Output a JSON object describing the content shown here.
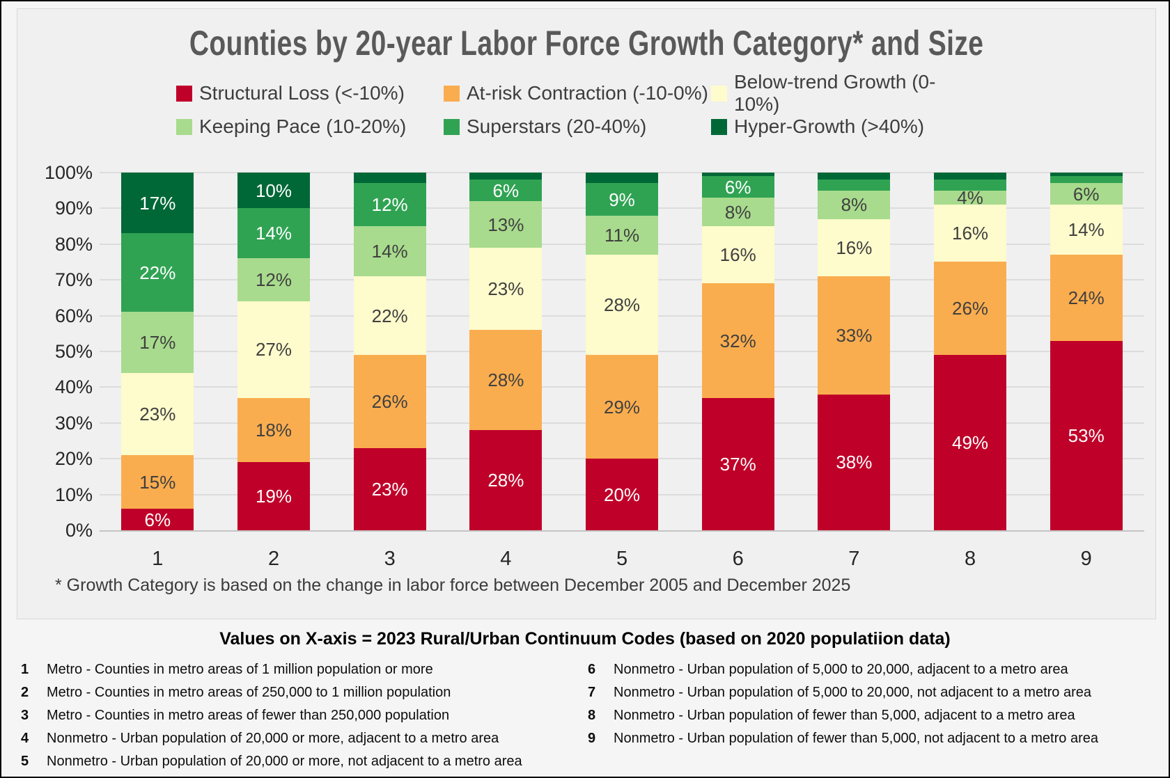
{
  "title": "Counties by 20-year Labor Force Growth Category* and Size",
  "footnote": "* Growth Category is based on the change in labor force between December 2005 and December 2025",
  "x_axis_note": {
    "heading": "Values on X-axis = 2023 Rural/Urban Continuum Codes  (based on 2020 populatiion data)",
    "codes_left": [
      {
        "code": "1",
        "desc": "Metro - Counties in metro areas of 1 million population or more"
      },
      {
        "code": "2",
        "desc": "Metro - Counties in metro areas of 250,000 to 1 million population"
      },
      {
        "code": "3",
        "desc": "Metro - Counties in metro areas of fewer than 250,000 population"
      },
      {
        "code": "4",
        "desc": "Nonmetro - Urban population of 20,000 or more, adjacent to a metro area"
      },
      {
        "code": "5",
        "desc": "Nonmetro - Urban population of 20,000 or more, not adjacent to a metro area"
      }
    ],
    "codes_right": [
      {
        "code": "6",
        "desc": "Nonmetro - Urban population of 5,000 to 20,000, adjacent to a metro area"
      },
      {
        "code": "7",
        "desc": "Nonmetro - Urban population of 5,000 to 20,000, not adjacent to a metro area"
      },
      {
        "code": "8",
        "desc": "Nonmetro - Urban population of fewer than 5,000, adjacent to a metro area"
      },
      {
        "code": "9",
        "desc": "Nonmetro - Urban population of fewer than 5,000, not adjacent to a metro area"
      }
    ]
  },
  "chart_data": {
    "type": "bar",
    "stacked": true,
    "orientation": "vertical",
    "title": "Counties by 20-year Labor Force Growth Category* and Size",
    "categories": [
      "1",
      "2",
      "3",
      "4",
      "5",
      "6",
      "7",
      "8",
      "9"
    ],
    "series": [
      {
        "name": "Structural Loss (<-10%)",
        "color": "#BF0029",
        "label_color": "#FFFFFF",
        "values": [
          6,
          19,
          23,
          28,
          20,
          37,
          38,
          49,
          53
        ]
      },
      {
        "name": "At-risk Contraction (-10-0%)",
        "color": "#FAAD4F",
        "label_color": "#404040",
        "values": [
          15,
          18,
          26,
          28,
          29,
          32,
          33,
          26,
          24
        ]
      },
      {
        "name": "Below-trend Growth (0-10%)",
        "color": "#FEFBCC",
        "label_color": "#404040",
        "values": [
          23,
          27,
          22,
          23,
          28,
          16,
          16,
          16,
          14
        ]
      },
      {
        "name": "Keeping Pace (10-20%)",
        "color": "#A8DB8D",
        "label_color": "#404040",
        "values": [
          17,
          12,
          14,
          13,
          11,
          8,
          8,
          4,
          6
        ]
      },
      {
        "name": "Superstars (20-40%)",
        "color": "#30A353",
        "label_color": "#FFFFFF",
        "values": [
          22,
          14,
          12,
          6,
          9,
          6,
          3,
          3,
          2
        ]
      },
      {
        "name": "Hyper-Growth (>40%)",
        "color": "#006837",
        "label_color": "#FFFFFF",
        "values": [
          17,
          10,
          3,
          2,
          3,
          1,
          2,
          2,
          1
        ]
      }
    ],
    "y_ticks": [
      "0%",
      "10%",
      "20%",
      "30%",
      "40%",
      "50%",
      "60%",
      "70%",
      "80%",
      "90%",
      "100%"
    ],
    "ylim": [
      0,
      100
    ],
    "grid": true,
    "legend_position": "top",
    "label_min_show": 4
  }
}
